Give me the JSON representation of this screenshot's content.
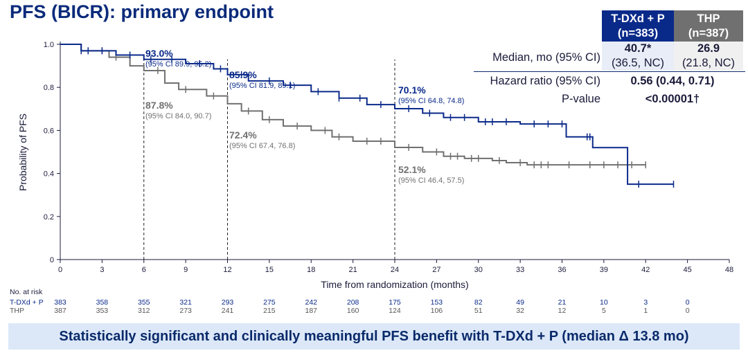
{
  "title": "PFS (BICR): primary endpoint",
  "stats": {
    "col1": "T-DXd + P",
    "col1_n": "(n=383)",
    "col2": "THP",
    "col2_n": "(n=387)",
    "median_label": "Median, mo (95% CI)",
    "median1": "40.7*",
    "median1_ci": "(36.5, NC)",
    "median2": "26.9",
    "median2_ci": "(21.8, NC)",
    "hr_label": "Hazard ratio (95% CI)",
    "hr": "0.56 (0.44, 0.71)",
    "p_label": "P-value",
    "p": "<0.00001†"
  },
  "chart_data": {
    "type": "line",
    "xlabel": "Time from randomization (months)",
    "ylabel": "Probability of PFS",
    "xlim": [
      0,
      48
    ],
    "ylim": [
      0,
      1
    ],
    "xticks": [
      0,
      3,
      6,
      9,
      12,
      15,
      18,
      21,
      24,
      27,
      30,
      33,
      36,
      39,
      42,
      45,
      48
    ],
    "yticks": [
      "0",
      "0.2",
      "0.4",
      "0.6",
      "0.8",
      "1.0"
    ],
    "reference_lines_x": [
      6,
      12,
      24
    ],
    "series": [
      {
        "name": "T-DXd + P",
        "color": "#0a2a8a",
        "steps": [
          [
            0,
            1
          ],
          [
            1.5,
            0.97
          ],
          [
            4,
            0.95
          ],
          [
            6,
            0.93
          ],
          [
            9,
            0.91
          ],
          [
            11,
            0.886
          ],
          [
            12,
            0.859
          ],
          [
            13.5,
            0.83
          ],
          [
            16,
            0.81
          ],
          [
            18,
            0.78
          ],
          [
            20,
            0.75
          ],
          [
            22,
            0.72
          ],
          [
            24,
            0.701
          ],
          [
            26,
            0.68
          ],
          [
            27.5,
            0.66
          ],
          [
            30,
            0.64
          ],
          [
            33,
            0.63
          ],
          [
            36.3,
            0.57
          ],
          [
            38.2,
            0.52
          ],
          [
            40.7,
            0.35
          ],
          [
            44,
            0.35
          ]
        ],
        "censored": [
          1.5,
          2,
          3,
          5,
          6.5,
          8,
          10,
          11.5,
          13,
          15,
          16.5,
          18.5,
          20,
          21.5,
          23,
          25,
          26.5,
          28,
          29,
          30.5,
          31,
          32,
          34,
          35,
          36,
          37.8,
          38,
          41.5,
          44
        ]
      },
      {
        "name": "THP",
        "color": "#707070",
        "steps": [
          [
            0,
            1
          ],
          [
            1.5,
            0.97
          ],
          [
            3.5,
            0.94
          ],
          [
            5,
            0.9
          ],
          [
            6,
            0.878
          ],
          [
            7.5,
            0.82
          ],
          [
            8.5,
            0.79
          ],
          [
            10.5,
            0.76
          ],
          [
            12,
            0.724
          ],
          [
            13,
            0.69
          ],
          [
            14.5,
            0.65
          ],
          [
            16,
            0.62
          ],
          [
            18,
            0.6
          ],
          [
            19.5,
            0.57
          ],
          [
            21,
            0.55
          ],
          [
            24,
            0.521
          ],
          [
            26,
            0.5
          ],
          [
            27.5,
            0.48
          ],
          [
            29,
            0.47
          ],
          [
            31,
            0.46
          ],
          [
            32,
            0.45
          ],
          [
            33.5,
            0.44
          ],
          [
            42,
            0.44
          ]
        ],
        "censored": [
          2,
          3,
          4,
          7,
          9,
          11,
          13.5,
          15,
          17,
          19,
          20,
          22,
          23,
          25,
          27,
          28,
          28.5,
          29.5,
          30,
          31.5,
          33,
          34,
          34.5,
          35,
          36.5,
          38,
          39,
          40,
          41,
          42
        ]
      }
    ],
    "annotations": [
      {
        "value": "93.0%",
        "ci": "(95% CI 89.9, 95.2)",
        "series": 0
      },
      {
        "value": "85.9%",
        "ci": "(95% CI 81.9, 89.1)",
        "series": 0
      },
      {
        "value": "70.1%",
        "ci": "(95% CI 64.8, 74.8)",
        "series": 0
      },
      {
        "value": "87.8%",
        "ci": "(95% CI 84.0, 90.7)",
        "series": 1
      },
      {
        "value": "72.4%",
        "ci": "(95% CI 67.4, 76.8)",
        "series": 1
      },
      {
        "value": "52.1%",
        "ci": "(95% CI 46.4, 57.5)",
        "series": 1
      }
    ]
  },
  "risk": {
    "label": "No. at risk",
    "rows": [
      {
        "name": "T-DXd + P",
        "values": [
          383,
          358,
          355,
          321,
          293,
          275,
          242,
          208,
          175,
          153,
          82,
          49,
          21,
          10,
          3,
          0
        ]
      },
      {
        "name": "THP",
        "values": [
          387,
          353,
          312,
          273,
          241,
          215,
          187,
          160,
          124,
          106,
          51,
          32,
          12,
          5,
          1,
          0
        ]
      }
    ]
  },
  "banner": "Statistically significant and clinically meaningful PFS benefit with T-DXd + P (median Δ 13.8 mo)"
}
